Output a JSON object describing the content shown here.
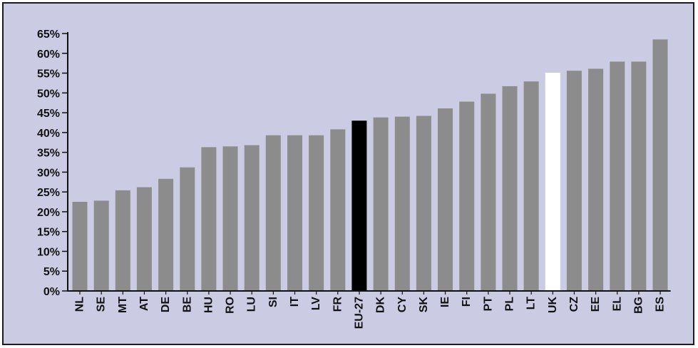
{
  "chart_data": {
    "type": "bar",
    "title": "",
    "xlabel": "",
    "ylabel": "",
    "ylim": [
      0,
      65
    ],
    "y_ticks": [
      0,
      5,
      10,
      15,
      20,
      25,
      30,
      35,
      40,
      45,
      50,
      55,
      60,
      65
    ],
    "y_tick_labels": [
      "0%",
      "5%",
      "10%",
      "15%",
      "20%",
      "25%",
      "30%",
      "35%",
      "40%",
      "45%",
      "50%",
      "55%",
      "60%",
      "65%"
    ],
    "grid": false,
    "legend": "none",
    "categories": [
      "NL",
      "SE",
      "MT",
      "AT",
      "DE",
      "BE",
      "HU",
      "RO",
      "LU",
      "SI",
      "IT",
      "LV",
      "FR",
      "EU-27",
      "DK",
      "CY",
      "SK",
      "IE",
      "FI",
      "PT",
      "PL",
      "LT",
      "UK",
      "CZ",
      "EE",
      "EL",
      "BG",
      "ES"
    ],
    "values": [
      22.5,
      22.8,
      25.4,
      26.2,
      28.3,
      31.2,
      36.3,
      36.5,
      36.8,
      39.3,
      39.3,
      39.3,
      40.8,
      43.0,
      43.8,
      44.0,
      44.2,
      46.1,
      47.8,
      49.8,
      51.7,
      52.9,
      55.1,
      55.6,
      56.1,
      57.9,
      57.9,
      63.5
    ],
    "highlights": {
      "EU-27": "#000000",
      "UK": "#ffffff"
    }
  },
  "colors": {
    "plot_background": "#cbcbe4",
    "bar_default": "#8c8c8c",
    "axis": "#111111"
  }
}
